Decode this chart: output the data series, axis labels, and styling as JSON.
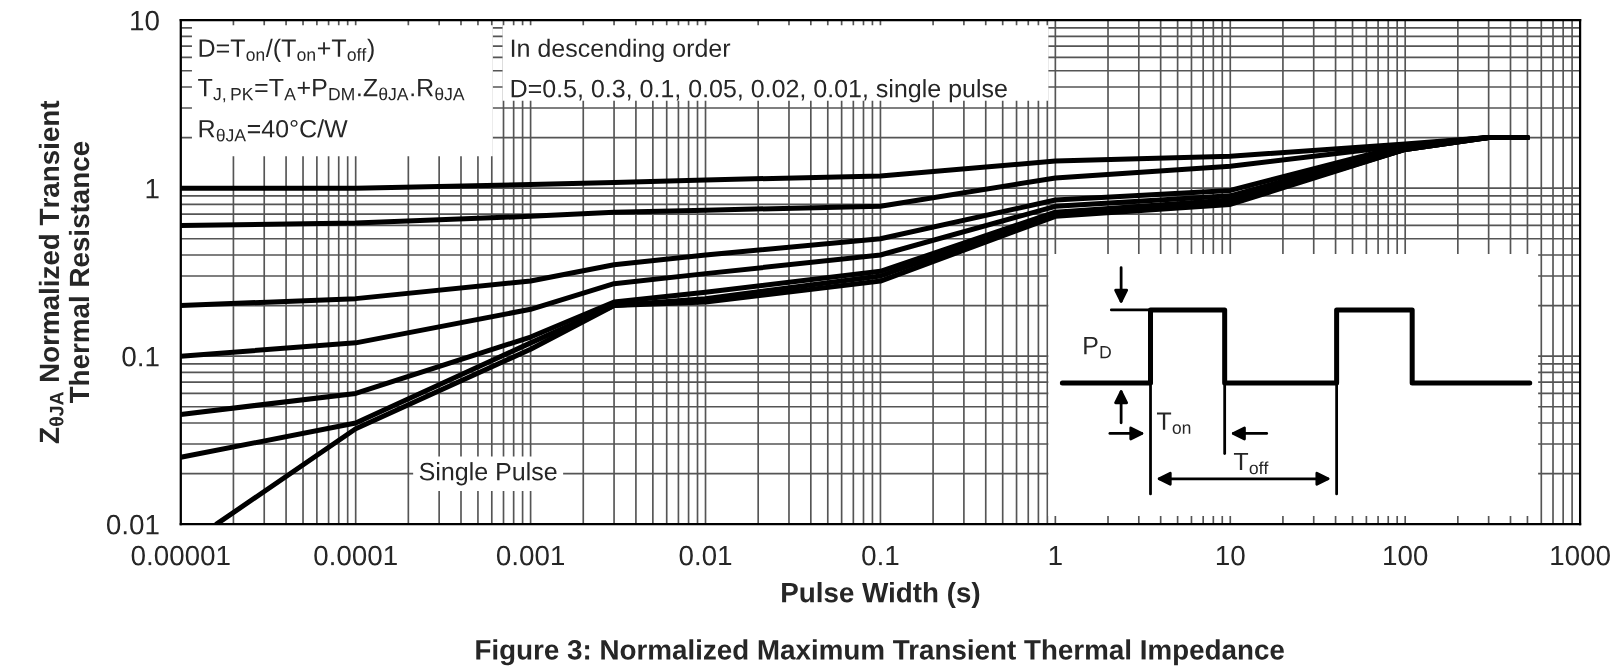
{
  "chart_data": {
    "type": "line",
    "title": "Figure 3: Normalized Maximum Transient Thermal Impedance",
    "xlabel": "Pulse Width (s)",
    "ylabel": "Z$_{θJA}$ Normalized Transient\nThermal Resistance",
    "log": "xy",
    "grid": true,
    "xlim": [
      1e-05,
      1000
    ],
    "ylim": [
      0.01,
      10
    ],
    "xticks": [
      {
        "value": 1e-05,
        "label": "0.00001"
      },
      {
        "value": 0.0001,
        "label": "0.0001"
      },
      {
        "value": 0.001,
        "label": "0.001"
      },
      {
        "value": 0.01,
        "label": "0.01"
      },
      {
        "value": 0.1,
        "label": "0.1"
      },
      1,
      10,
      100,
      1000
    ],
    "yticks": [
      0.01,
      0.1,
      1,
      10
    ],
    "annotations": [
      "D=T$_{on}$/(T$_{on}$+T$_{off}$)",
      "T$_{J,PK}$=T$_{A}$+P$_{DM}$.Z$_{θJA}$.R$_{θJA}$",
      "R$_{θJA}$=40°C/W",
      "In descending order",
      "D=0.5, 0.3, 0.1, 0.05, 0.02, 0.01, single pulse",
      "Single Pulse",
      "P$_{D}$",
      "T$_{on}$",
      "T$_{off}$"
    ],
    "x": [
      1e-05,
      0.0001,
      0.001,
      0.003,
      0.01,
      0.1,
      1,
      10,
      100,
      300,
      500
    ],
    "series": [
      {
        "color": "#000000",
        "values": [
          1.0,
          1.0,
          1.05,
          1.08,
          1.12,
          1.18,
          1.45,
          1.55,
          1.83,
          2.0,
          2.0
        ]
      },
      {
        "color": "#000000",
        "values": [
          0.6,
          0.62,
          0.68,
          0.72,
          0.74,
          0.78,
          1.15,
          1.35,
          1.8,
          2.0,
          2.0
        ]
      },
      {
        "color": "#000000",
        "values": [
          0.2,
          0.22,
          0.28,
          0.35,
          0.4,
          0.5,
          0.85,
          0.97,
          1.8,
          2.0,
          2.0
        ]
      },
      {
        "color": "#000000",
        "values": [
          0.1,
          0.12,
          0.19,
          0.27,
          0.31,
          0.4,
          0.78,
          0.9,
          1.75,
          2.0,
          2.0
        ]
      },
      {
        "color": "#000000",
        "values": [
          0.045,
          0.06,
          0.13,
          0.21,
          0.24,
          0.32,
          0.72,
          0.85,
          1.7,
          2.0,
          2.0
        ]
      },
      {
        "color": "#000000",
        "values": [
          0.025,
          0.04,
          0.12,
          0.2,
          0.22,
          0.3,
          0.7,
          0.82,
          1.7,
          2.0,
          2.0
        ]
      },
      {
        "color": "#000000",
        "x": [
          1.6e-05,
          0.0001,
          0.001,
          0.003,
          0.01,
          0.1,
          1,
          10,
          100,
          300,
          500
        ],
        "values": [
          0.01,
          0.037,
          0.11,
          0.2,
          0.21,
          0.28,
          0.68,
          0.8,
          1.7,
          2.0,
          2.0
        ]
      }
    ]
  }
}
